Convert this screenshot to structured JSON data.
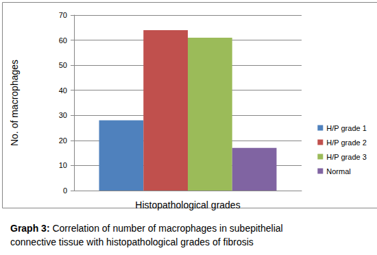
{
  "chart_data": {
    "type": "bar",
    "title": "Graph 3: Correlation of number of macrophages in subepithelial connective tissue with histopathological grades of fibrosis",
    "y_label": "No. of macrophages",
    "categories": [
      "Histopathological grades"
    ],
    "series": [
      {
        "name": "H/P grade 1",
        "color": "#4f81bd",
        "values": [
          28
        ]
      },
      {
        "name": "H/P grade 2",
        "color": "#c0504d",
        "values": [
          64
        ]
      },
      {
        "name": "H/P grade 3",
        "color": "#9bbb59",
        "values": [
          61
        ]
      },
      {
        "name": "Normal",
        "color": "#8064a2",
        "values": [
          17
        ]
      }
    ],
    "ylim": [
      0,
      70
    ],
    "yticks": [
      0,
      10,
      20,
      30,
      40,
      50,
      60,
      70
    ],
    "grid": true,
    "legend": "right"
  }
}
